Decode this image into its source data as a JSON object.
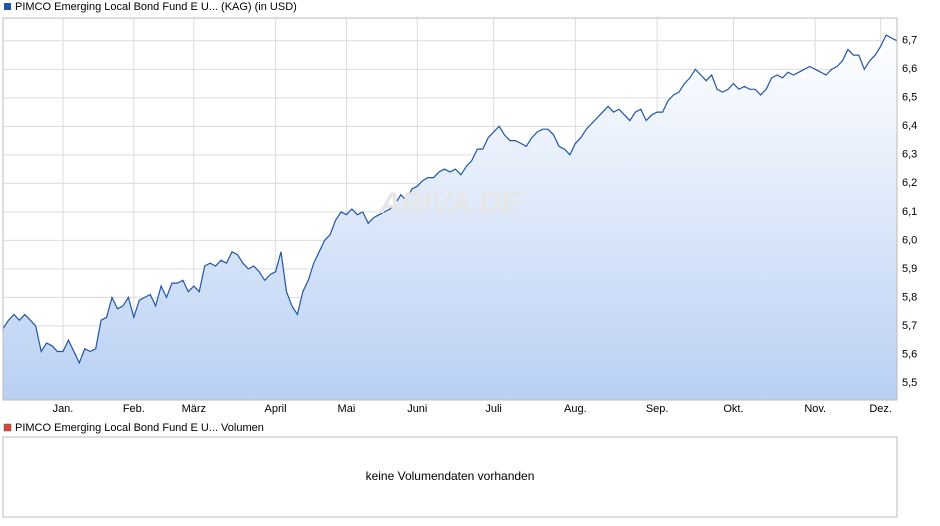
{
  "chart_data": {
    "type": "line",
    "watermark": "ARIVA.DE",
    "series": [
      {
        "name": "PIMCO Emerging Local Bond Fund E U... (KAG) (in USD)",
        "color": "#1f55a8",
        "values": [
          5.69,
          5.72,
          5.74,
          5.72,
          5.74,
          5.72,
          5.7,
          5.61,
          5.64,
          5.63,
          5.61,
          5.61,
          5.65,
          5.61,
          5.57,
          5.62,
          5.61,
          5.62,
          5.72,
          5.73,
          5.8,
          5.76,
          5.77,
          5.8,
          5.73,
          5.79,
          5.8,
          5.81,
          5.77,
          5.84,
          5.8,
          5.85,
          5.85,
          5.86,
          5.82,
          5.84,
          5.82,
          5.91,
          5.92,
          5.91,
          5.93,
          5.92,
          5.96,
          5.95,
          5.92,
          5.9,
          5.91,
          5.89,
          5.86,
          5.88,
          5.89,
          5.96,
          5.82,
          5.77,
          5.74,
          5.82,
          5.86,
          5.92,
          5.96,
          6.0,
          6.02,
          6.07,
          6.1,
          6.09,
          6.11,
          6.09,
          6.1,
          6.06,
          6.08,
          6.09,
          6.1,
          6.11,
          6.13,
          6.16,
          6.14,
          6.18,
          6.19,
          6.21,
          6.22,
          6.22,
          6.24,
          6.25,
          6.24,
          6.25,
          6.23,
          6.26,
          6.28,
          6.32,
          6.32,
          6.36,
          6.38,
          6.4,
          6.37,
          6.35,
          6.35,
          6.34,
          6.33,
          6.36,
          6.38,
          6.39,
          6.39,
          6.37,
          6.33,
          6.32,
          6.3,
          6.34,
          6.36,
          6.39,
          6.41,
          6.43,
          6.45,
          6.47,
          6.45,
          6.46,
          6.44,
          6.42,
          6.45,
          6.46,
          6.42,
          6.44,
          6.45,
          6.45,
          6.49,
          6.51,
          6.52,
          6.55,
          6.57,
          6.6,
          6.58,
          6.56,
          6.58,
          6.53,
          6.52,
          6.53,
          6.55,
          6.53,
          6.54,
          6.53,
          6.53,
          6.51,
          6.53,
          6.57,
          6.58,
          6.57,
          6.59,
          6.58,
          6.59,
          6.6,
          6.61,
          6.6,
          6.59,
          6.58,
          6.6,
          6.61,
          6.63,
          6.67,
          6.65,
          6.65,
          6.6,
          6.63,
          6.65,
          6.68,
          6.72,
          6.71,
          6.7
        ]
      }
    ],
    "xlim": [
      0,
      164
    ],
    "xticks": [
      {
        "value": 11,
        "label": "Jan."
      },
      {
        "value": 24,
        "label": "Feb."
      },
      {
        "value": 35,
        "label": "März"
      },
      {
        "value": 50,
        "label": "April"
      },
      {
        "value": 63,
        "label": "Mai"
      },
      {
        "value": 76,
        "label": "Juni"
      },
      {
        "value": 90,
        "label": "Juli"
      },
      {
        "value": 105,
        "label": "Aug."
      },
      {
        "value": 120,
        "label": "Sep."
      },
      {
        "value": 134,
        "label": "Okt."
      },
      {
        "value": 149,
        "label": "Nov."
      },
      {
        "value": 161,
        "label": "Dez."
      }
    ],
    "ylim": [
      5.44,
      6.78
    ],
    "yticks": [
      {
        "value": 5.5,
        "label": "5,5"
      },
      {
        "value": 5.6,
        "label": "5,6"
      },
      {
        "value": 5.7,
        "label": "5,7"
      },
      {
        "value": 5.8,
        "label": "5,8"
      },
      {
        "value": 5.9,
        "label": "5,9"
      },
      {
        "value": 6.0,
        "label": "6,0"
      },
      {
        "value": 6.1,
        "label": "6,1"
      },
      {
        "value": 6.2,
        "label": "6,2"
      },
      {
        "value": 6.3,
        "label": "6,3"
      },
      {
        "value": 6.4,
        "label": "6,4"
      },
      {
        "value": 6.5,
        "label": "6,5"
      },
      {
        "value": 6.6,
        "label": "6,6"
      },
      {
        "value": 6.7,
        "label": "6,7"
      }
    ],
    "grid": true,
    "volume_panel": {
      "title": "PIMCO Emerging Local Bond Fund E U... Volumen",
      "color": "#d9473b",
      "message": "keine Volumendaten vorhanden"
    }
  }
}
